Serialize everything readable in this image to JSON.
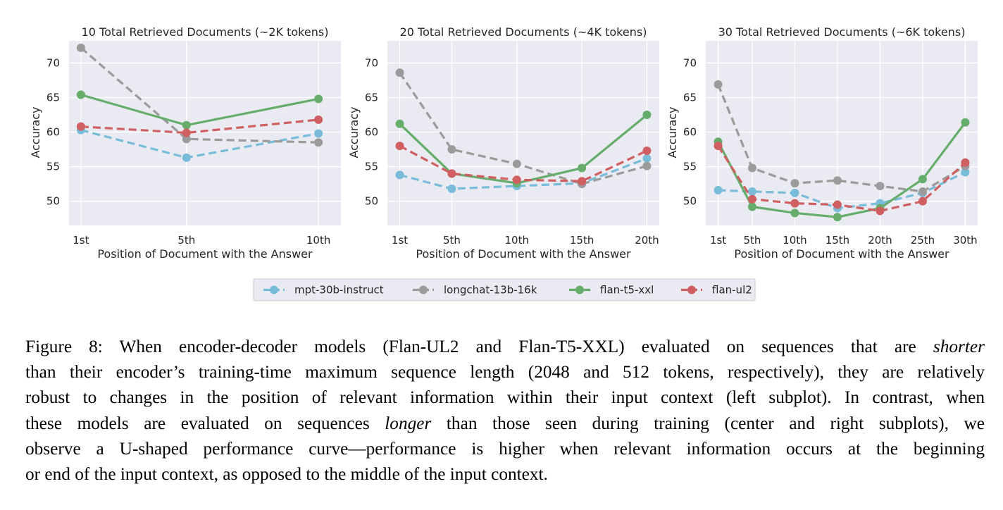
{
  "chart_data": [
    {
      "type": "line",
      "title": "10 Total Retrieved Documents (~2K tokens)",
      "xlabel": "Position of Document with the Answer",
      "ylabel": "Accuracy",
      "x": [
        1,
        5,
        10
      ],
      "xticks": [
        1,
        5,
        10
      ],
      "xticklabels": [
        "1st",
        "5th",
        "10th"
      ],
      "xlim": [
        0.55,
        10.85
      ],
      "ylim": [
        46.5,
        73.2
      ],
      "yticks": [
        50,
        55,
        60,
        65,
        70
      ],
      "grid": true,
      "series": [
        {
          "name": "mpt-30b-instruct",
          "values": [
            60.3,
            56.3,
            59.8
          ]
        },
        {
          "name": "longchat-13b-16k",
          "values": [
            72.2,
            59.0,
            58.5
          ]
        },
        {
          "name": "flan-t5-xxl",
          "values": [
            65.4,
            61.0,
            64.8
          ]
        },
        {
          "name": "flan-ul2",
          "values": [
            60.8,
            59.9,
            61.8
          ]
        }
      ]
    },
    {
      "type": "line",
      "title": "20 Total Retrieved Documents (~4K tokens)",
      "xlabel": "Position of Document with the Answer",
      "ylabel": "Accuracy",
      "x": [
        1,
        5,
        10,
        15,
        20
      ],
      "xticks": [
        1,
        5,
        10,
        15,
        20
      ],
      "xticklabels": [
        "1st",
        "5th",
        "10th",
        "15th",
        "20th"
      ],
      "xlim": [
        0.05,
        20.95
      ],
      "ylim": [
        46.5,
        73.2
      ],
      "yticks": [
        50,
        55,
        60,
        65,
        70
      ],
      "grid": true,
      "series": [
        {
          "name": "mpt-30b-instruct",
          "values": [
            53.8,
            51.8,
            52.2,
            52.6,
            56.2
          ]
        },
        {
          "name": "longchat-13b-16k",
          "values": [
            68.6,
            57.5,
            55.4,
            52.5,
            55.1
          ]
        },
        {
          "name": "flan-t5-xxl",
          "values": [
            61.2,
            54.0,
            52.6,
            54.8,
            62.5
          ]
        },
        {
          "name": "flan-ul2",
          "values": [
            58.0,
            54.0,
            53.1,
            52.9,
            57.3
          ]
        }
      ]
    },
    {
      "type": "line",
      "title": "30 Total Retrieved Documents (~6K tokens)",
      "xlabel": "Position of Document with the Answer",
      "ylabel": "Accuracy",
      "x": [
        1,
        5,
        10,
        15,
        20,
        25,
        30
      ],
      "xticks": [
        1,
        5,
        10,
        15,
        20,
        25,
        30
      ],
      "xticklabels": [
        "1st",
        "5th",
        "10th",
        "15th",
        "20th",
        "25th",
        "30th"
      ],
      "xlim": [
        -0.45,
        31.45
      ],
      "ylim": [
        46.5,
        73.2
      ],
      "yticks": [
        50,
        55,
        60,
        65,
        70
      ],
      "grid": true,
      "series": [
        {
          "name": "mpt-30b-instruct",
          "values": [
            51.6,
            51.4,
            51.2,
            49.0,
            49.7,
            51.2,
            54.2
          ]
        },
        {
          "name": "longchat-13b-16k",
          "values": [
            66.9,
            54.8,
            52.6,
            53.0,
            52.2,
            51.4,
            55.1
          ]
        },
        {
          "name": "flan-t5-xxl",
          "values": [
            58.6,
            49.2,
            48.3,
            47.7,
            49.0,
            53.2,
            61.4
          ]
        },
        {
          "name": "flan-ul2",
          "values": [
            58.0,
            50.3,
            49.7,
            49.5,
            48.6,
            50.0,
            55.6
          ]
        }
      ]
    }
  ],
  "legend": {
    "placement": "bottom-center",
    "entries": [
      {
        "label": "mpt-30b-instruct",
        "color": "#79bcd9",
        "dash": true
      },
      {
        "label": "longchat-13b-16k",
        "color": "#9b9b9b",
        "dash": true
      },
      {
        "label": "flan-t5-xxl",
        "color": "#66ad6c",
        "dash": false
      },
      {
        "label": "flan-ul2",
        "color": "#cf5f61",
        "dash": true
      }
    ]
  },
  "colors": {
    "mpt-30b-instruct": "#79bcd9",
    "longchat-13b-16k": "#9b9b9b",
    "flan-t5-xxl": "#66ad6c",
    "flan-ul2": "#cf5f61",
    "axes_background": "#eaeaf2",
    "grid": "#ffffff"
  },
  "caption": {
    "line1_a": "Figure 8: When encoder-decoder models (Flan-UL2 and Flan-T5-XXL) evaluated on sequences that are ",
    "line1_em": "shorter",
    "line2": "than their encoder’s training-time maximum sequence length (2048 and 512 tokens, respectively), they are relatively",
    "line3": "robust to changes in the position of relevant information within their input context (left subplot). In contrast, when",
    "line4_a": "these models are evaluated on sequences ",
    "line4_em": "longer",
    "line4_b": " than those seen during training (center and right subplots), we",
    "line5": "observe a U-shaped performance curve—performance is higher when relevant information occurs at the beginning",
    "line6": "or end of the input context, as opposed to the middle of the input context."
  }
}
